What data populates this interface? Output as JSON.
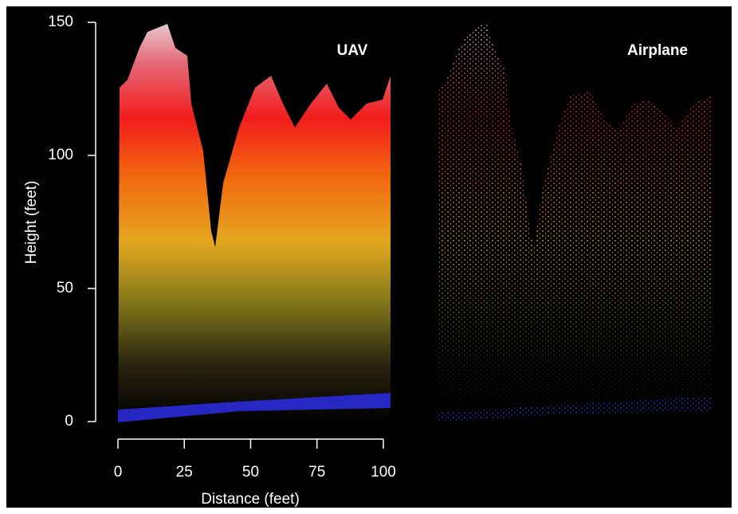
{
  "chart_data": {
    "type": "scatter",
    "xlabel": "Distance (feet)",
    "ylabel": "Height (feet)",
    "xlim": [
      0,
      100
    ],
    "ylim": [
      0,
      150
    ],
    "xticks": [
      0,
      25,
      50,
      75,
      100
    ],
    "yticks": [
      0,
      50,
      100,
      150
    ],
    "panels": [
      {
        "title": "UAV"
      },
      {
        "title": "Airplane"
      }
    ]
  }
}
